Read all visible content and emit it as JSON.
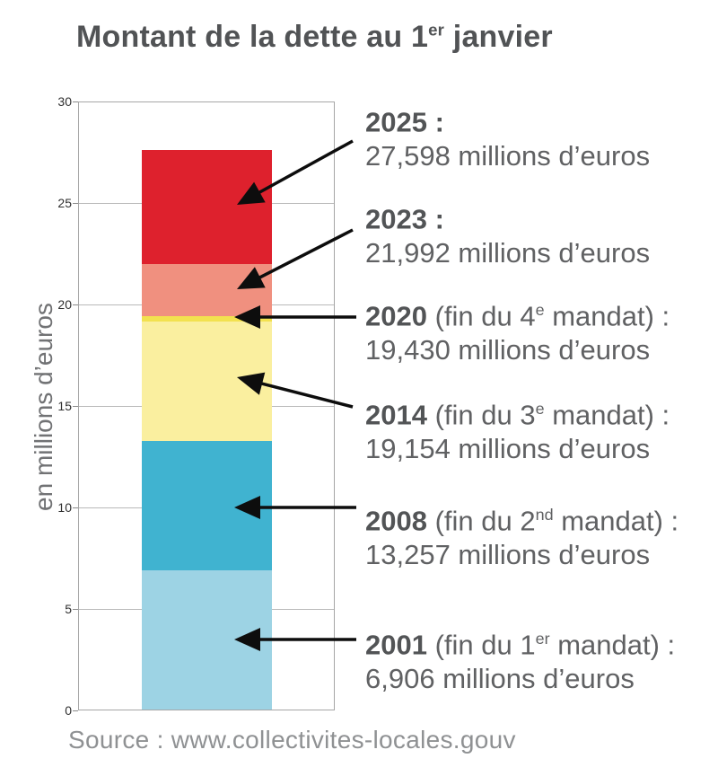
{
  "title": {
    "pre": "Montant de la dette au 1",
    "sup": "er",
    "post": " janvier"
  },
  "source": "Source : www.collectivites-locales.gouv",
  "chart_data": {
    "type": "bar",
    "title": "Montant de la dette au 1er janvier",
    "ylabel": "en millions d’euros",
    "ylim": [
      0,
      30
    ],
    "yticks": [
      0,
      5,
      10,
      15,
      20,
      25,
      30
    ],
    "grid": true,
    "layout_note": "single centered column; overlapping layers show debt level (millions of euros) at each date",
    "series": [
      {
        "name": "2025",
        "level": 27.598,
        "color": "#de212d"
      },
      {
        "name": "2023",
        "level": 21.992,
        "color": "#f0907f"
      },
      {
        "name": "2020",
        "level": 19.43,
        "color": "#f2e14f"
      },
      {
        "name": "2014",
        "level": 19.154,
        "color": "#faef9f"
      },
      {
        "name": "2008",
        "level": 13.257,
        "color": "#40b3d0"
      },
      {
        "name": "2001",
        "level": 6.906,
        "color": "#9dd3e4"
      }
    ]
  },
  "annotations": [
    {
      "bold": "2025 :",
      "label_pre": "",
      "label_sup": "",
      "label_post": "",
      "value": "27,598 millions d’euros"
    },
    {
      "bold": "2023 :",
      "label_pre": "",
      "label_sup": "",
      "label_post": "",
      "value": "21,992 millions d’euros"
    },
    {
      "bold": "2020",
      "label_pre": " (fin du 4",
      "label_sup": "e",
      "label_post": " mandat) :",
      "value": "19,430 millions d’euros"
    },
    {
      "bold": "2014",
      "label_pre": " (fin du 3",
      "label_sup": "e",
      "label_post": " mandat) :",
      "value": "19,154 millions d’euros"
    },
    {
      "bold": "2008",
      "label_pre": " (fin du 2",
      "label_sup": "nd",
      "label_post": " mandat) :",
      "value": "13,257 millions d’euros"
    },
    {
      "bold": "2001",
      "label_pre": " (fin du 1",
      "label_sup": "er",
      "label_post": " mandat) :",
      "value": "6,906 millions d’euros"
    }
  ]
}
